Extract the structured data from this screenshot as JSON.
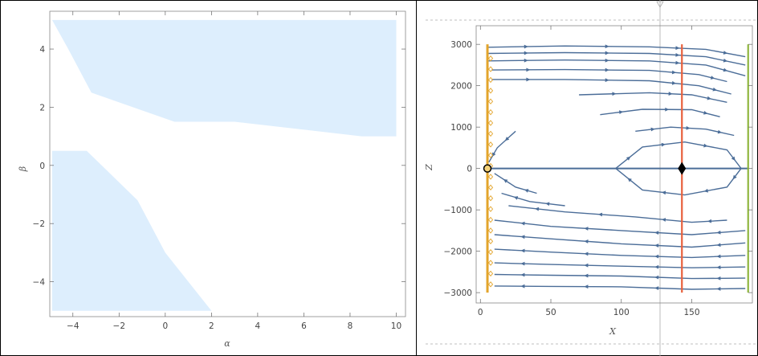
{
  "chart_data": [
    {
      "type": "area",
      "xlabel": "α",
      "ylabel": "β",
      "xlim": [
        -5,
        10.4
      ],
      "ylim": [
        -5.2,
        5.3
      ],
      "xticks": [
        -4,
        -2,
        0,
        2,
        4,
        6,
        8,
        10
      ],
      "yticks": [
        -4,
        -2,
        0,
        2,
        4
      ],
      "xtick_labels": [
        "−4",
        "−2",
        "0",
        "2",
        "4",
        "6",
        "8",
        "10"
      ],
      "ytick_labels": [
        "−4",
        "−2",
        "0",
        "2",
        "4"
      ],
      "fill_color": "#ddeefd",
      "regions": [
        {
          "name": "",
          "points": [
            [
              -4.9,
              5.0
            ],
            [
              10.0,
              5.0
            ],
            [
              10.0,
              1.0
            ],
            [
              8.5,
              1.0
            ],
            [
              3.0,
              1.5
            ],
            [
              0.4,
              1.5
            ],
            [
              -3.2,
              2.5
            ],
            [
              -4.2,
              4.0
            ],
            [
              -4.9,
              5.0
            ]
          ]
        },
        {
          "name": "",
          "points": [
            [
              -4.9,
              0.5
            ],
            [
              -3.4,
              0.5
            ],
            [
              -1.2,
              -1.2
            ],
            [
              0.0,
              -3.0
            ],
            [
              2.0,
              -5.0
            ],
            [
              -4.9,
              -5.0
            ]
          ]
        }
      ]
    },
    {
      "type": "line",
      "xlabel": "X",
      "ylabel": "Z",
      "xlim": [
        -3,
        193
      ],
      "ylim": [
        -3250,
        3450
      ],
      "xticks": [
        0,
        50,
        100,
        150
      ],
      "yticks": [
        -3000,
        -2000,
        -1000,
        0,
        1000,
        2000,
        3000
      ],
      "xtick_labels": [
        "0",
        "50",
        "100",
        "150"
      ],
      "ytick_labels": [
        "−3000",
        "−2000",
        "−1000",
        "0",
        "1000",
        "2000",
        "3000"
      ],
      "flow_color": "#4b6d98",
      "vertical_lines": [
        {
          "x": 5,
          "color": "#e3a52c"
        },
        {
          "x": 143,
          "color": "#e8603c"
        },
        {
          "x": 190,
          "color": "#8fb63e"
        }
      ],
      "horizontal_line": {
        "y": 0,
        "xrange": [
          5,
          190
        ],
        "color": "#4b6d98"
      },
      "fixed_points": [
        {
          "x": 5,
          "y": 0,
          "style": "open-circle"
        },
        {
          "x": 143,
          "y": 0,
          "style": "diamond"
        }
      ],
      "series": [
        {
          "values": [
            [
              5,
              2930
            ],
            [
              60,
              2960
            ],
            [
              120,
              2940
            ],
            [
              160,
              2880
            ],
            [
              188,
              2700
            ]
          ]
        },
        {
          "values": [
            [
              5,
              2780
            ],
            [
              60,
              2800
            ],
            [
              120,
              2780
            ],
            [
              160,
              2700
            ],
            [
              188,
              2500
            ]
          ]
        },
        {
          "values": [
            [
              5,
              2600
            ],
            [
              60,
              2620
            ],
            [
              120,
              2600
            ],
            [
              160,
              2500
            ],
            [
              188,
              2240
            ]
          ]
        },
        {
          "values": [
            [
              8,
              2380
            ],
            [
              60,
              2390
            ],
            [
              120,
              2370
            ],
            [
              155,
              2270
            ],
            [
              175,
              2100
            ]
          ]
        },
        {
          "values": [
            [
              8,
              2150
            ],
            [
              60,
              2150
            ],
            [
              120,
              2120
            ],
            [
              155,
              2000
            ],
            [
              178,
              1800
            ]
          ]
        },
        {
          "values": [
            [
              70,
              1780
            ],
            [
              120,
              1830
            ],
            [
              150,
              1780
            ],
            [
              175,
              1600
            ]
          ]
        },
        {
          "values": [
            [
              85,
              1300
            ],
            [
              115,
              1430
            ],
            [
              150,
              1420
            ],
            [
              170,
              1250
            ]
          ]
        },
        {
          "values": [
            [
              110,
              900
            ],
            [
              135,
              1000
            ],
            [
              160,
              950
            ],
            [
              180,
              800
            ]
          ]
        },
        {
          "values": [
            [
              96,
              0
            ],
            [
              115,
              520
            ],
            [
              145,
              640
            ],
            [
              175,
              450
            ],
            [
              185,
              0
            ],
            [
              175,
              -450
            ],
            [
              145,
              -640
            ],
            [
              115,
              -520
            ],
            [
              96,
              0
            ]
          ]
        },
        {
          "values": [
            [
              25,
              900
            ],
            [
              12,
              500
            ],
            [
              6,
              150
            ]
          ]
        },
        {
          "values": [
            [
              40,
              -600
            ],
            [
              25,
              -450
            ],
            [
              10,
              -120
            ]
          ]
        },
        {
          "values": [
            [
              60,
              -900
            ],
            [
              35,
              -800
            ],
            [
              15,
              -600
            ]
          ]
        },
        {
          "values": [
            [
              175,
              -1250
            ],
            [
              150,
              -1300
            ],
            [
              110,
              -1170
            ],
            [
              60,
              -1050
            ],
            [
              20,
              -900
            ]
          ]
        },
        {
          "values": [
            [
              188,
              -1500
            ],
            [
              150,
              -1600
            ],
            [
              100,
              -1500
            ],
            [
              50,
              -1400
            ],
            [
              10,
              -1250
            ]
          ]
        },
        {
          "values": [
            [
              188,
              -1800
            ],
            [
              150,
              -1900
            ],
            [
              100,
              -1820
            ],
            [
              50,
              -1700
            ],
            [
              10,
              -1600
            ]
          ]
        },
        {
          "values": [
            [
              188,
              -2100
            ],
            [
              150,
              -2150
            ],
            [
              100,
              -2100
            ],
            [
              50,
              -2020
            ],
            [
              10,
              -1950
            ]
          ]
        },
        {
          "values": [
            [
              188,
              -2380
            ],
            [
              150,
              -2400
            ],
            [
              100,
              -2360
            ],
            [
              50,
              -2320
            ],
            [
              10,
              -2280
            ]
          ]
        },
        {
          "values": [
            [
              188,
              -2650
            ],
            [
              150,
              -2660
            ],
            [
              100,
              -2600
            ],
            [
              50,
              -2580
            ],
            [
              10,
              -2560
            ]
          ]
        },
        {
          "values": [
            [
              188,
              -2900
            ],
            [
              150,
              -2920
            ],
            [
              100,
              -2860
            ],
            [
              50,
              -2850
            ],
            [
              10,
              -2840
            ]
          ]
        }
      ]
    }
  ]
}
